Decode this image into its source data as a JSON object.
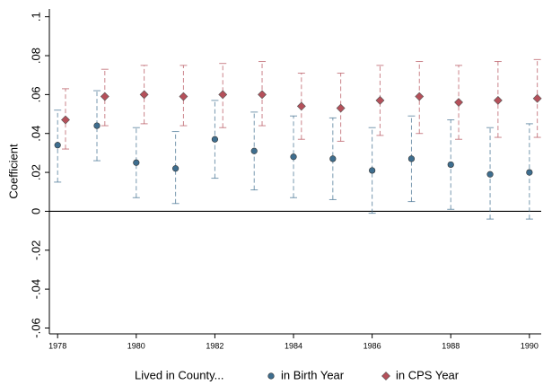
{
  "chart_data": {
    "type": "errorbar",
    "x": [
      1978,
      1979,
      1980,
      1981,
      1982,
      1983,
      1984,
      1985,
      1986,
      1987,
      1988,
      1989,
      1990
    ],
    "y_label": "Coefficient",
    "legend_title": "Lived in County...",
    "series": [
      {
        "name": "in Birth Year",
        "color": "#3e6e8f",
        "marker": "circle",
        "values": [
          0.034,
          0.044,
          0.025,
          0.022,
          0.037,
          0.031,
          0.028,
          0.027,
          0.021,
          0.027,
          0.024,
          0.019,
          0.02
        ],
        "lower": [
          0.015,
          0.026,
          0.007,
          0.004,
          0.017,
          0.011,
          0.007,
          0.006,
          -0.001,
          0.005,
          0.001,
          -0.004,
          -0.004
        ],
        "upper": [
          0.052,
          0.062,
          0.043,
          0.041,
          0.057,
          0.051,
          0.049,
          0.048,
          0.043,
          0.049,
          0.047,
          0.043,
          0.045
        ]
      },
      {
        "name": "in CPS Year",
        "color": "#b5505a",
        "marker": "diamond",
        "values": [
          0.047,
          0.059,
          0.06,
          0.059,
          0.06,
          0.06,
          0.054,
          0.053,
          0.057,
          0.059,
          0.056,
          0.057,
          0.058
        ],
        "lower": [
          0.032,
          0.044,
          0.045,
          0.044,
          0.043,
          0.044,
          0.037,
          0.036,
          0.039,
          0.04,
          0.037,
          0.038,
          0.038
        ],
        "upper": [
          0.063,
          0.073,
          0.075,
          0.075,
          0.076,
          0.077,
          0.071,
          0.071,
          0.075,
          0.077,
          0.075,
          0.077,
          0.078
        ]
      }
    ],
    "reference_line": 0,
    "xlim": [
      1977.79,
      1990.3
    ],
    "xticks": [
      1978,
      1980,
      1982,
      1984,
      1986,
      1988,
      1990
    ],
    "ylim": [
      -0.063,
      0.104
    ],
    "yticks": [
      {
        "value": 0.1,
        "label": ".1"
      },
      {
        "value": 0.08,
        "label": ".08"
      },
      {
        "value": 0.06,
        "label": ".06"
      },
      {
        "value": 0.04,
        "label": ".04"
      },
      {
        "value": 0.02,
        "label": ".02"
      },
      0,
      {
        "value": -0.02,
        "label": "-.02"
      },
      {
        "value": -0.04,
        "label": "-.04"
      },
      {
        "value": -0.06,
        "label": "-.06"
      }
    ],
    "grid": false,
    "legend_position": "bottom"
  }
}
